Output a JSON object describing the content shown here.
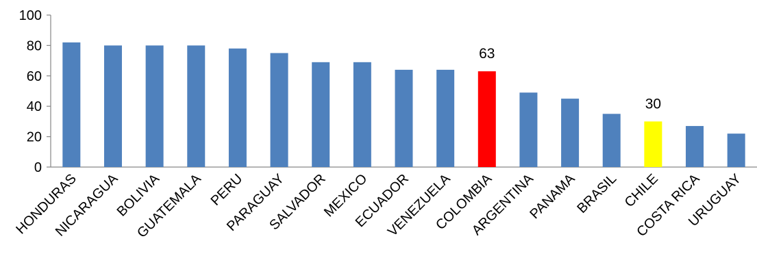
{
  "chart_data": {
    "type": "bar",
    "title": "",
    "xlabel": "",
    "ylabel": "",
    "ylim": [
      0,
      100
    ],
    "yticks": [
      0,
      20,
      40,
      60,
      80,
      100
    ],
    "grid": false,
    "legend": "none",
    "categories": [
      "HONDURAS",
      "NICARAGUA",
      "BOLIVIA",
      "GUATEMALA",
      "PERU",
      "PARAGUAY",
      "SALVADOR",
      "MEXICO",
      "ECUADOR",
      "VENEZUELA",
      "COLOMBIA",
      "ARGENTINA",
      "PANAMA",
      "BRASIL",
      "CHILE",
      "COSTA RICA",
      "URUGUAY"
    ],
    "values": [
      82,
      80,
      80,
      80,
      78,
      75,
      69,
      69,
      64,
      64,
      63,
      49,
      45,
      35,
      30,
      27,
      22
    ],
    "bar_colors": [
      "#4f81bd",
      "#4f81bd",
      "#4f81bd",
      "#4f81bd",
      "#4f81bd",
      "#4f81bd",
      "#4f81bd",
      "#4f81bd",
      "#4f81bd",
      "#4f81bd",
      "#ff0000",
      "#4f81bd",
      "#4f81bd",
      "#4f81bd",
      "#ffff00",
      "#4f81bd",
      "#4f81bd"
    ],
    "data_labels": [
      {
        "category": "COLOMBIA",
        "text": "63"
      },
      {
        "category": "CHILE",
        "text": "30"
      }
    ]
  }
}
